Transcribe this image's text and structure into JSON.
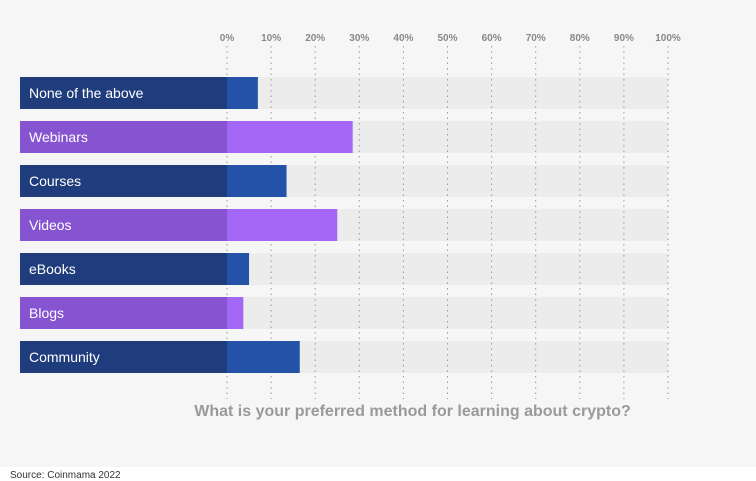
{
  "chart_data": {
    "type": "bar",
    "orientation": "horizontal",
    "question": "What is your preferred method for learning about crypto?",
    "categories": [
      "None of the above",
      "Webinars",
      "Courses",
      "Videos",
      "eBooks",
      "Blogs",
      "Community"
    ],
    "values": [
      7,
      28.5,
      13.5,
      25,
      5,
      3.7,
      16.5
    ],
    "xlim": [
      0,
      100
    ],
    "ticks": [
      0,
      10,
      20,
      30,
      40,
      50,
      60,
      70,
      80,
      90,
      100
    ],
    "tick_labels": [
      "0%",
      "10%",
      "20%",
      "30%",
      "40%",
      "50%",
      "60%",
      "70%",
      "80%",
      "90%",
      "100%"
    ],
    "grid": true,
    "colors": {
      "label_bg_odd": "#1f3c7c",
      "label_bg_even": "#8654d0",
      "bar_odd": "#2352a8",
      "bar_even": "#a366f5",
      "track": "#ececec",
      "grid": "#9a9a9a",
      "tick_text": "#888888",
      "question_text": "#9a9a9a"
    }
  },
  "footer": {
    "source_text": "Source: Coinmama 2022"
  }
}
